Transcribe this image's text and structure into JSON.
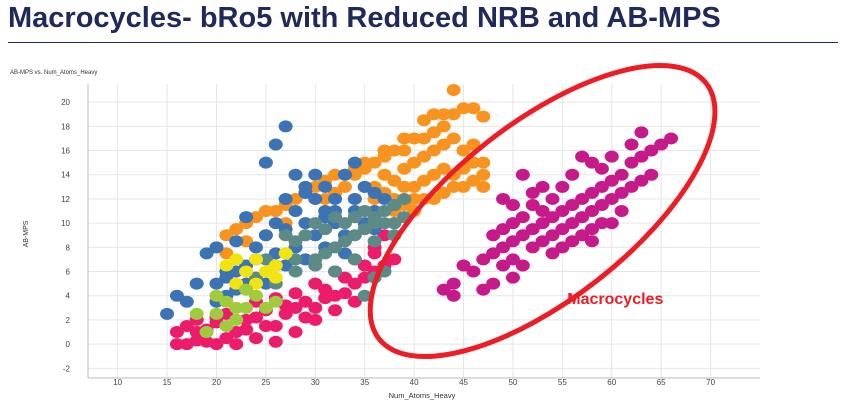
{
  "slide": {
    "title": "Macrocycles- bRo5 with Reduced NRB and AB-MPS"
  },
  "chart_data": {
    "type": "scatter",
    "title": "AB-MPS vs. Num_Atoms_Heavy",
    "xlabel": "Num_Atoms_Heavy",
    "ylabel": "AB-MPS",
    "xlim": [
      7,
      75
    ],
    "ylim": [
      -2.8,
      21.5
    ],
    "xticks": [
      10,
      15,
      20,
      25,
      30,
      35,
      40,
      45,
      50,
      55,
      60,
      65,
      70
    ],
    "yticks": [
      -2,
      0,
      2,
      4,
      6,
      8,
      10,
      12,
      14,
      16,
      18,
      20
    ],
    "grid": true,
    "annotation": {
      "text": "Macrocycles",
      "color": "#ee1c24",
      "x": 55.5,
      "y": 3.3,
      "ellipse": {
        "cx": 53,
        "cy": 11,
        "rx": 21,
        "ry": 7.3,
        "angle_deg": -38
      }
    },
    "series": [
      {
        "color": "#ec1c6b",
        "points": [
          [
            16,
            0
          ],
          [
            17,
            0
          ],
          [
            18,
            0.3
          ],
          [
            19,
            0.2
          ],
          [
            20,
            0
          ],
          [
            16,
            1
          ],
          [
            17,
            1.5
          ],
          [
            18,
            2
          ],
          [
            19,
            1.2
          ],
          [
            20,
            1.8
          ],
          [
            21,
            2.5
          ],
          [
            22,
            1
          ],
          [
            23,
            2
          ],
          [
            24,
            2.2
          ],
          [
            25,
            2.8
          ],
          [
            26,
            1.5
          ],
          [
            27,
            2.5
          ],
          [
            28,
            3
          ],
          [
            29,
            3.5
          ],
          [
            30,
            3
          ],
          [
            31,
            3.8
          ],
          [
            32,
            4
          ],
          [
            33,
            4.2
          ],
          [
            34,
            5
          ],
          [
            35,
            5.5
          ],
          [
            36,
            6
          ],
          [
            37,
            6.5
          ],
          [
            38,
            7
          ],
          [
            24,
            3.5
          ],
          [
            26,
            3.8
          ],
          [
            28,
            4.2
          ],
          [
            30,
            5
          ],
          [
            32,
            6
          ],
          [
            34,
            7
          ],
          [
            36,
            8
          ],
          [
            37,
            9
          ],
          [
            38,
            10
          ],
          [
            22,
            0
          ],
          [
            24,
            0.5
          ],
          [
            26,
            0.2
          ],
          [
            28,
            1
          ],
          [
            30,
            2
          ],
          [
            32,
            2.8
          ],
          [
            34,
            3.5
          ],
          [
            18,
            1
          ],
          [
            20,
            2.2
          ],
          [
            21,
            0.5
          ],
          [
            23,
            1.2
          ],
          [
            25,
            1.5
          ],
          [
            27,
            3.2
          ],
          [
            29,
            2.2
          ],
          [
            31,
            4.5
          ],
          [
            33,
            5.5
          ],
          [
            35,
            6.5
          ],
          [
            36,
            7.5
          ]
        ]
      },
      {
        "color": "#f7931e",
        "points": [
          [
            20,
            8
          ],
          [
            21,
            9
          ],
          [
            22,
            9.5
          ],
          [
            23,
            10
          ],
          [
            24,
            10.5
          ],
          [
            25,
            11
          ],
          [
            26,
            11
          ],
          [
            27,
            11.5
          ],
          [
            28,
            12
          ],
          [
            29,
            12.5
          ],
          [
            30,
            13
          ],
          [
            31,
            13.5
          ],
          [
            32,
            14
          ],
          [
            33,
            14
          ],
          [
            34,
            14.5
          ],
          [
            35,
            15
          ],
          [
            36,
            15
          ],
          [
            37,
            15.5
          ],
          [
            38,
            16
          ],
          [
            39,
            16
          ],
          [
            40,
            17
          ],
          [
            41,
            17
          ],
          [
            42,
            17.5
          ],
          [
            43,
            18
          ],
          [
            44,
            19
          ],
          [
            45,
            19.5
          ],
          [
            44,
            21
          ],
          [
            46,
            19.5
          ],
          [
            47,
            18.8
          ],
          [
            36,
            13
          ],
          [
            37,
            14
          ],
          [
            38,
            13.5
          ],
          [
            39,
            14.5
          ],
          [
            40,
            15
          ],
          [
            41,
            15.5
          ],
          [
            42,
            16
          ],
          [
            43,
            16.5
          ],
          [
            44,
            17
          ],
          [
            45,
            16
          ],
          [
            46,
            16.5
          ],
          [
            47,
            15
          ],
          [
            34,
            12
          ],
          [
            35,
            13
          ],
          [
            36,
            12
          ],
          [
            37,
            12.5
          ],
          [
            38,
            12
          ],
          [
            39,
            13
          ],
          [
            40,
            13
          ],
          [
            41,
            13.5
          ],
          [
            42,
            14
          ],
          [
            43,
            14.5
          ],
          [
            44,
            14
          ],
          [
            45,
            14.5
          ],
          [
            46,
            15
          ],
          [
            47,
            14
          ],
          [
            40,
            11
          ],
          [
            41,
            12
          ],
          [
            42,
            12
          ],
          [
            43,
            12.5
          ],
          [
            44,
            13
          ],
          [
            45,
            13
          ],
          [
            46,
            13.5
          ],
          [
            47,
            13
          ],
          [
            38,
            11
          ],
          [
            39,
            11.5
          ],
          [
            40,
            12
          ],
          [
            33,
            13
          ],
          [
            34,
            14
          ],
          [
            35,
            14.5
          ],
          [
            37,
            16
          ],
          [
            39,
            17
          ],
          [
            41,
            18.5
          ],
          [
            42,
            19
          ],
          [
            43,
            19
          ],
          [
            30,
            12
          ],
          [
            31,
            12
          ],
          [
            32,
            12.5
          ],
          [
            27,
            10
          ],
          [
            25,
            9
          ],
          [
            23,
            8.5
          ],
          [
            21,
            7.5
          ]
        ]
      },
      {
        "color": "#3b73b5",
        "points": [
          [
            15,
            2.5
          ],
          [
            16,
            4
          ],
          [
            17,
            3.5
          ],
          [
            18,
            5
          ],
          [
            19,
            7.5
          ],
          [
            20,
            8
          ],
          [
            21,
            6
          ],
          [
            22,
            8.5
          ],
          [
            23,
            10.5
          ],
          [
            24,
            8
          ],
          [
            25,
            9
          ],
          [
            26,
            10
          ],
          [
            27,
            12
          ],
          [
            28,
            11
          ],
          [
            29,
            12.5
          ],
          [
            30,
            14
          ],
          [
            31,
            13
          ],
          [
            32,
            12
          ],
          [
            33,
            14
          ],
          [
            34,
            15
          ],
          [
            35,
            13
          ],
          [
            36,
            12.5
          ],
          [
            37,
            12
          ],
          [
            38,
            11.5
          ],
          [
            25,
            15
          ],
          [
            26,
            16.5
          ],
          [
            27,
            18
          ],
          [
            28,
            14
          ],
          [
            29,
            13
          ],
          [
            30,
            12
          ],
          [
            31,
            11
          ],
          [
            32,
            10
          ],
          [
            33,
            9
          ],
          [
            34,
            11
          ],
          [
            35,
            10
          ],
          [
            36,
            9.5
          ],
          [
            24,
            7
          ],
          [
            23,
            6.5
          ],
          [
            22,
            6
          ],
          [
            21,
            5.5
          ],
          [
            20,
            5
          ],
          [
            26,
            7.5
          ],
          [
            28,
            8
          ],
          [
            30,
            9
          ],
          [
            32,
            11
          ],
          [
            34,
            12
          ],
          [
            36,
            11
          ],
          [
            20,
            3.5
          ],
          [
            21,
            4
          ],
          [
            22,
            4.5
          ],
          [
            23,
            5
          ],
          [
            27,
            6.5
          ],
          [
            29,
            7
          ],
          [
            31,
            8
          ],
          [
            33,
            7.5
          ],
          [
            25,
            5
          ],
          [
            27,
            9.5
          ],
          [
            29,
            10
          ],
          [
            31,
            10.5
          ]
        ]
      },
      {
        "color": "#5b8a87",
        "points": [
          [
            27,
            9
          ],
          [
            28,
            8.5
          ],
          [
            29,
            9
          ],
          [
            30,
            10
          ],
          [
            31,
            9.5
          ],
          [
            32,
            10.5
          ],
          [
            33,
            10
          ],
          [
            34,
            10.5
          ],
          [
            35,
            11
          ],
          [
            36,
            10.5
          ],
          [
            37,
            11
          ],
          [
            38,
            11.5
          ],
          [
            39,
            12
          ],
          [
            30,
            7
          ],
          [
            31,
            7.5
          ],
          [
            32,
            8
          ],
          [
            33,
            8.5
          ],
          [
            34,
            9
          ],
          [
            35,
            9.5
          ],
          [
            36,
            10
          ],
          [
            37,
            10
          ],
          [
            38,
            10
          ],
          [
            39,
            10.5
          ],
          [
            32,
            6
          ],
          [
            34,
            7
          ],
          [
            36,
            8.5
          ],
          [
            38,
            9
          ],
          [
            35,
            4
          ],
          [
            36,
            5.5
          ],
          [
            37,
            6
          ],
          [
            25,
            7
          ],
          [
            26,
            6.5
          ],
          [
            28,
            7
          ],
          [
            24,
            5.5
          ],
          [
            26,
            5
          ],
          [
            28,
            6
          ],
          [
            30,
            6.5
          ]
        ]
      },
      {
        "color": "#f1e40f",
        "points": [
          [
            21,
            6.5
          ],
          [
            22,
            7
          ],
          [
            23,
            6
          ],
          [
            24,
            7
          ],
          [
            25,
            6
          ],
          [
            26,
            6.5
          ],
          [
            27,
            7.5
          ],
          [
            22,
            5
          ],
          [
            24,
            5
          ],
          [
            26,
            5.5
          ]
        ]
      },
      {
        "color": "#9fcb3c",
        "points": [
          [
            19,
            1
          ],
          [
            20,
            2.5
          ],
          [
            21,
            1.5
          ],
          [
            22,
            2
          ],
          [
            23,
            3
          ],
          [
            24,
            4
          ],
          [
            25,
            3
          ],
          [
            26,
            3.5
          ],
          [
            21,
            3.5
          ],
          [
            23,
            4.5
          ],
          [
            18,
            2.5
          ],
          [
            20,
            4
          ],
          [
            22,
            3
          ]
        ]
      },
      {
        "color": "#c71a8a",
        "points": [
          [
            44,
            5
          ],
          [
            45,
            6.5
          ],
          [
            46,
            6
          ],
          [
            47,
            7
          ],
          [
            48,
            7.5
          ],
          [
            49,
            8
          ],
          [
            50,
            8.5
          ],
          [
            51,
            9
          ],
          [
            52,
            9.5
          ],
          [
            53,
            10
          ],
          [
            54,
            10.5
          ],
          [
            55,
            11
          ],
          [
            56,
            11.5
          ],
          [
            57,
            12
          ],
          [
            58,
            12.5
          ],
          [
            59,
            13
          ],
          [
            60,
            13.5
          ],
          [
            61,
            14
          ],
          [
            62,
            15
          ],
          [
            63,
            15.5
          ],
          [
            64,
            16
          ],
          [
            65,
            16.5
          ],
          [
            66,
            17
          ],
          [
            63,
            17.5
          ],
          [
            62,
            16.5
          ],
          [
            60,
            15.5
          ],
          [
            58,
            15
          ],
          [
            56,
            14
          ],
          [
            55,
            13
          ],
          [
            54,
            12
          ],
          [
            53,
            11
          ],
          [
            52,
            11.5
          ],
          [
            51,
            10.5
          ],
          [
            50,
            10
          ],
          [
            49,
            9.5
          ],
          [
            48,
            9
          ],
          [
            52,
            8
          ],
          [
            53,
            8.5
          ],
          [
            54,
            9
          ],
          [
            55,
            9.5
          ],
          [
            56,
            10
          ],
          [
            57,
            10.5
          ],
          [
            58,
            11
          ],
          [
            59,
            11.5
          ],
          [
            60,
            12
          ],
          [
            61,
            12.5
          ],
          [
            62,
            13
          ],
          [
            63,
            13.5
          ],
          [
            64,
            14
          ],
          [
            54,
            7.5
          ],
          [
            55,
            8
          ],
          [
            56,
            8.5
          ],
          [
            57,
            9
          ],
          [
            58,
            9.5
          ],
          [
            59,
            10
          ],
          [
            50,
            11.5
          ],
          [
            49,
            12
          ],
          [
            52,
            12.5
          ],
          [
            53,
            13
          ],
          [
            51,
            14
          ],
          [
            57,
            15.5
          ],
          [
            59,
            14.5
          ],
          [
            48,
            5
          ],
          [
            47,
            4.5
          ],
          [
            49,
            6.5
          ],
          [
            50,
            7
          ],
          [
            43,
            4.5
          ],
          [
            44,
            4
          ],
          [
            58,
            8.5
          ],
          [
            60,
            10
          ],
          [
            61,
            11
          ],
          [
            50,
            5.5
          ],
          [
            51,
            6.5
          ]
        ]
      }
    ]
  }
}
